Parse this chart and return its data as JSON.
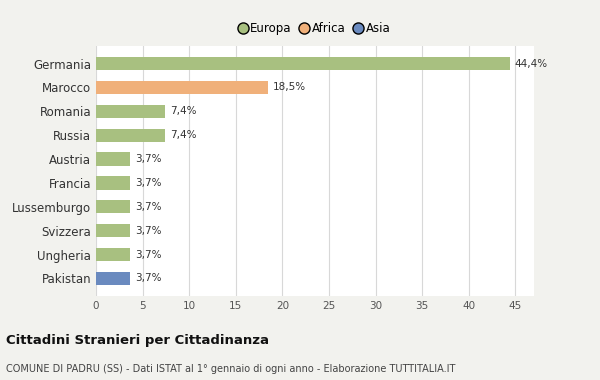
{
  "categories": [
    "Germania",
    "Marocco",
    "Romania",
    "Russia",
    "Austria",
    "Francia",
    "Lussemburgo",
    "Svizzera",
    "Ungheria",
    "Pakistan"
  ],
  "values": [
    44.4,
    18.5,
    7.4,
    7.4,
    3.7,
    3.7,
    3.7,
    3.7,
    3.7,
    3.7
  ],
  "labels": [
    "44,4%",
    "18,5%",
    "7,4%",
    "7,4%",
    "3,7%",
    "3,7%",
    "3,7%",
    "3,7%",
    "3,7%",
    "3,7%"
  ],
  "colors": [
    "#a8c080",
    "#f0b07a",
    "#a8c080",
    "#a8c080",
    "#a8c080",
    "#a8c080",
    "#a8c080",
    "#a8c080",
    "#a8c080",
    "#6a8abf"
  ],
  "legend": [
    {
      "label": "Europa",
      "color": "#a8c080"
    },
    {
      "label": "Africa",
      "color": "#f0b07a"
    },
    {
      "label": "Asia",
      "color": "#6a8abf"
    }
  ],
  "xlim": [
    0,
    47
  ],
  "xticks": [
    0,
    5,
    10,
    15,
    20,
    25,
    30,
    35,
    40,
    45
  ],
  "title": "Cittadini Stranieri per Cittadinanza",
  "subtitle": "COMUNE DI PADRU (SS) - Dati ISTAT al 1° gennaio di ogni anno - Elaborazione TUTTITALIA.IT",
  "background_color": "#f2f2ee",
  "bar_background": "#ffffff",
  "grid_color": "#d8d8d8"
}
